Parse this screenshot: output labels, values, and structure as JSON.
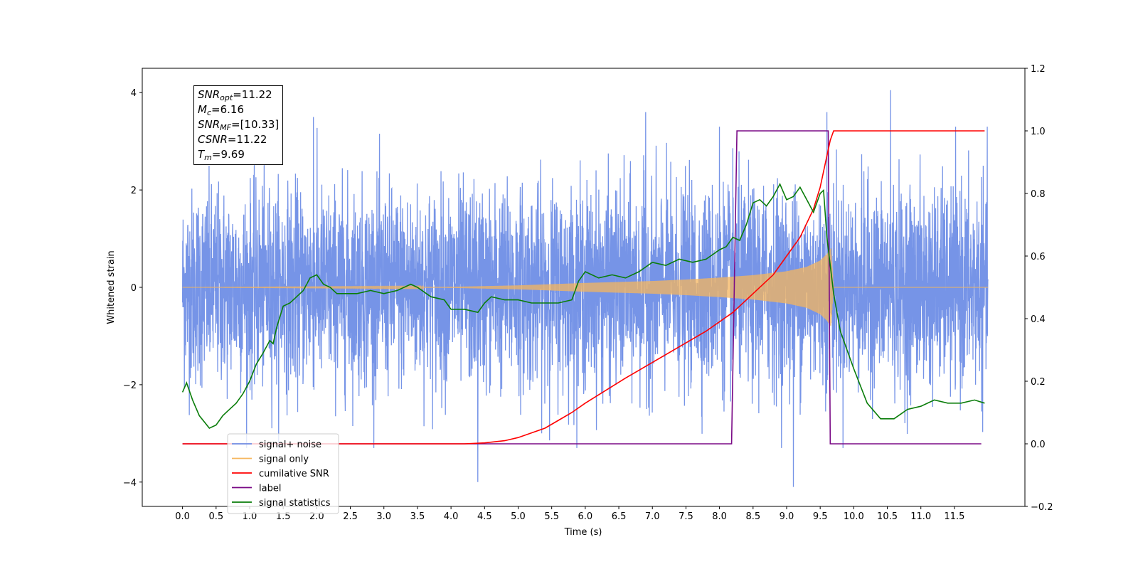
{
  "chart_data": {
    "type": "line",
    "xlabel": "Time (s)",
    "ylabel_left": "Whitened strain",
    "ylabel_right": "",
    "xlim": [
      -0.6,
      12.55
    ],
    "ylim_left": [
      -4.5,
      4.5
    ],
    "ylim_right": [
      -0.2,
      1.2
    ],
    "x_ticks": [
      0.0,
      0.5,
      1.0,
      1.5,
      2.0,
      2.5,
      3.0,
      3.5,
      4.0,
      4.5,
      5.0,
      5.5,
      6.0,
      6.5,
      7.0,
      7.5,
      8.0,
      8.5,
      9.0,
      9.5,
      10.0,
      10.5,
      11.0,
      11.5
    ],
    "x_tick_labels": [
      "0.0",
      "0.5",
      "1.0",
      "1.5",
      "2.0",
      "2.5",
      "3.0",
      "3.5",
      "4.0",
      "4.5",
      "5.0",
      "5.5",
      "6.0",
      "6.5",
      "7.0",
      "7.5",
      "8.0",
      "8.5",
      "9.0",
      "9.5",
      "10.0",
      "10.5",
      "11.0",
      "11.5"
    ],
    "y_left_ticks": [
      -4,
      -2,
      0,
      2,
      4
    ],
    "y_left_tick_labels": [
      "−4",
      "−2",
      "0",
      "2",
      "4"
    ],
    "y_right_ticks": [
      -0.2,
      0.0,
      0.2,
      0.4,
      0.6,
      0.8,
      1.0,
      1.2
    ],
    "y_right_tick_labels": [
      "−0.2",
      "0.0",
      "0.2",
      "0.4",
      "0.6",
      "0.8",
      "1.0",
      "1.2"
    ],
    "grid": false,
    "legend_position": "lower-left",
    "series": [
      {
        "name": "signal+ noise",
        "axis": "left",
        "color": "#6f8ee6",
        "style": "noise band",
        "x_range": [
          0.0,
          12.0
        ],
        "typical_amplitude_sigma": 1.0,
        "extreme_values": [
          [
            1.95,
            3.5
          ],
          [
            6.9,
            3.6
          ],
          [
            8.0,
            3.3
          ],
          [
            9.6,
            3.6
          ],
          [
            10.55,
            4.05
          ],
          [
            4.4,
            -4.0
          ],
          [
            9.1,
            -4.1
          ]
        ]
      },
      {
        "name": "signal only",
        "axis": "left",
        "color": "#f6b65e",
        "style": "chirp",
        "x_range": [
          0.0,
          12.0
        ],
        "envelope": {
          "x": [
            0.0,
            4.0,
            5.0,
            6.0,
            7.0,
            7.5,
            8.0,
            8.5,
            9.0,
            9.3,
            9.5,
            9.6,
            9.66,
            9.7,
            12.0
          ],
          "amplitude": [
            0.0,
            0.01,
            0.04,
            0.09,
            0.13,
            0.16,
            0.2,
            0.25,
            0.33,
            0.42,
            0.55,
            0.68,
            0.8,
            0.0,
            0.0
          ]
        }
      },
      {
        "name": "cumilative SNR",
        "axis": "right",
        "color": "#ff0000",
        "x": [
          0.0,
          4.2,
          4.5,
          4.8,
          5.0,
          5.2,
          5.4,
          5.6,
          5.8,
          6.0,
          6.3,
          6.6,
          7.0,
          7.4,
          7.8,
          8.2,
          8.5,
          8.8,
          9.0,
          9.2,
          9.4,
          9.5,
          9.6,
          9.65,
          9.7,
          11.95
        ],
        "values": [
          0.0,
          0.0,
          0.003,
          0.01,
          0.02,
          0.035,
          0.05,
          0.075,
          0.1,
          0.13,
          0.17,
          0.21,
          0.26,
          0.31,
          0.36,
          0.42,
          0.48,
          0.54,
          0.6,
          0.66,
          0.75,
          0.82,
          0.92,
          0.97,
          1.0,
          1.0
        ]
      },
      {
        "name": "label",
        "axis": "right",
        "color": "#7a0a86",
        "x": [
          0.0,
          8.18,
          8.26,
          9.62,
          9.65,
          11.9
        ],
        "values": [
          0.0,
          0.0,
          1.0,
          1.0,
          0.0,
          0.0
        ]
      },
      {
        "name": "signal statistics",
        "axis": "right",
        "color": "#0a7d0a",
        "x": [
          0.0,
          0.06,
          0.15,
          0.25,
          0.4,
          0.5,
          0.6,
          0.7,
          0.8,
          0.9,
          1.0,
          1.1,
          1.2,
          1.3,
          1.35,
          1.4,
          1.5,
          1.6,
          1.7,
          1.8,
          1.9,
          2.0,
          2.1,
          2.2,
          2.3,
          2.4,
          2.6,
          2.8,
          3.0,
          3.2,
          3.4,
          3.5,
          3.7,
          3.9,
          4.0,
          4.2,
          4.4,
          4.5,
          4.6,
          4.8,
          5.0,
          5.2,
          5.4,
          5.6,
          5.8,
          5.9,
          6.0,
          6.2,
          6.4,
          6.6,
          6.8,
          7.0,
          7.2,
          7.4,
          7.6,
          7.8,
          8.0,
          8.1,
          8.2,
          8.3,
          8.4,
          8.5,
          8.6,
          8.7,
          8.8,
          8.9,
          9.0,
          9.1,
          9.2,
          9.3,
          9.4,
          9.5,
          9.55,
          9.6,
          9.7,
          9.8,
          9.9,
          10.0,
          10.2,
          10.4,
          10.6,
          10.8,
          11.0,
          11.2,
          11.4,
          11.6,
          11.8,
          11.95
        ],
        "values": [
          0.165,
          0.195,
          0.14,
          0.09,
          0.05,
          0.06,
          0.09,
          0.11,
          0.13,
          0.16,
          0.2,
          0.255,
          0.29,
          0.33,
          0.32,
          0.37,
          0.44,
          0.45,
          0.47,
          0.49,
          0.53,
          0.54,
          0.51,
          0.5,
          0.48,
          0.48,
          0.48,
          0.49,
          0.48,
          0.49,
          0.51,
          0.5,
          0.47,
          0.46,
          0.43,
          0.43,
          0.42,
          0.45,
          0.47,
          0.46,
          0.46,
          0.45,
          0.45,
          0.45,
          0.46,
          0.52,
          0.55,
          0.53,
          0.54,
          0.53,
          0.55,
          0.58,
          0.57,
          0.59,
          0.58,
          0.59,
          0.62,
          0.63,
          0.66,
          0.65,
          0.7,
          0.77,
          0.78,
          0.76,
          0.79,
          0.83,
          0.78,
          0.79,
          0.82,
          0.78,
          0.74,
          0.8,
          0.81,
          0.66,
          0.48,
          0.36,
          0.3,
          0.24,
          0.13,
          0.08,
          0.08,
          0.11,
          0.12,
          0.14,
          0.13,
          0.13,
          0.14,
          0.13
        ]
      }
    ],
    "legend_entries": [
      {
        "label": "signal+ noise",
        "color": "#6f8ee6",
        "style": "line"
      },
      {
        "label": "signal only",
        "color": "#f6b65e",
        "style": "line"
      },
      {
        "label": "cumilative SNR",
        "color": "#ff0000",
        "style": "line"
      },
      {
        "label": "label",
        "color": "#7a0a86",
        "style": "line"
      },
      {
        "label": "signal statistics",
        "color": "#0a7d0a",
        "style": "line"
      }
    ],
    "annotation": {
      "snr_opt": "=11.22",
      "mc": "=6.16",
      "snr_mf": "=[10.33]",
      "csnr": "=11.22",
      "tm": "=9.69"
    }
  }
}
